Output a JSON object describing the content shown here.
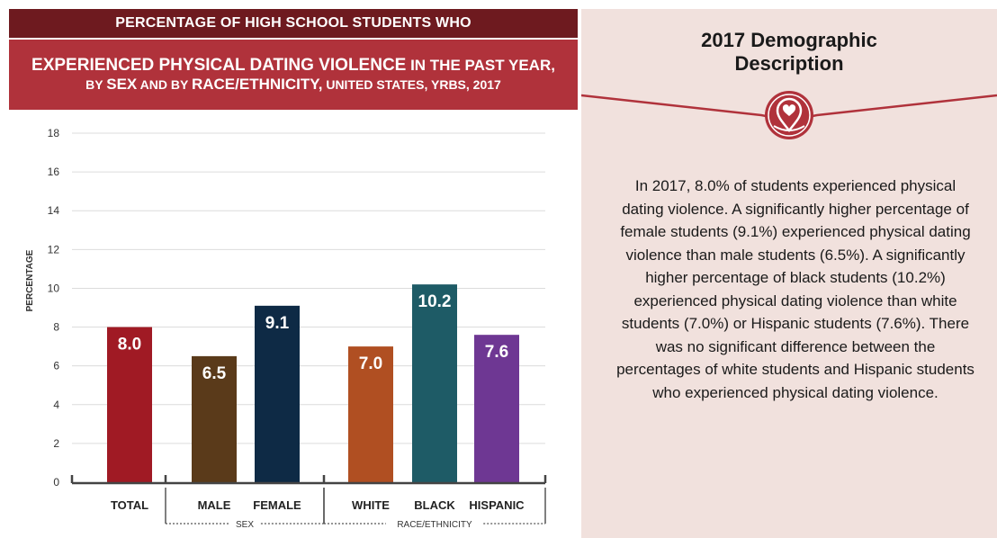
{
  "header": {
    "line1": "PERCENTAGE OF HIGH SCHOOL STUDENTS WHO",
    "line2_big": "EXPERIENCED PHYSICAL DATING VIOLENCE",
    "line2_rest": " IN THE PAST YEAR,",
    "line3_a": "BY ",
    "line3_sex": "SEX",
    "line3_b": " AND BY ",
    "line3_race": "RACE/ETHNICITY,",
    "line3_c": " UNITED STATES, YRBS, 2017"
  },
  "chart_data": {
    "type": "bar",
    "ylabel": "PERCENTAGE",
    "ylim": [
      0,
      18
    ],
    "yticks": [
      0,
      2,
      4,
      6,
      8,
      10,
      12,
      14,
      16,
      18
    ],
    "grid": true,
    "categories": [
      "TOTAL",
      "MALE",
      "FEMALE",
      "WHITE",
      "BLACK",
      "HISPANIC"
    ],
    "values": [
      8.0,
      6.5,
      9.1,
      7.0,
      10.2,
      7.6
    ],
    "value_labels": [
      "8.0",
      "6.5",
      "9.1",
      "7.0",
      "10.2",
      "7.6"
    ],
    "colors": [
      "#a01a24",
      "#5a3a1a",
      "#0e2a45",
      "#b04f22",
      "#1e5b66",
      "#6e3793"
    ],
    "groups": [
      {
        "label": "SEX",
        "categories": [
          "MALE",
          "FEMALE"
        ]
      },
      {
        "label": "RACE/ETHNICITY",
        "categories": [
          "WHITE",
          "BLACK",
          "HISPANIC"
        ]
      }
    ]
  },
  "description": {
    "title_line1": "2017 Demographic",
    "title_line2": "Description",
    "icon": "heart-location-pin-icon",
    "body": "In 2017, 8.0% of students experienced physical dating violence. A significantly higher percentage of female students (9.1%) experienced physical dating violence than male students (6.5%). A significantly higher percentage of black students (10.2%) experienced physical dating violence than white students (7.0%) or Hispanic students (7.6%). There was no significant difference between the percentages of white students and Hispanic students who experienced physical dating violence."
  },
  "colors": {
    "header_dark": "#6e1a1f",
    "header_red": "#b0323b",
    "panel_bg": "#f1e1dd",
    "accent": "#b0323b"
  }
}
